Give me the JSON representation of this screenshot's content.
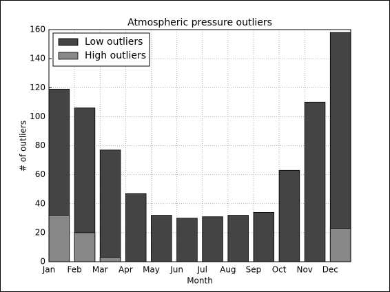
{
  "chart_data": {
    "type": "bar",
    "barmode": "overlay",
    "title": "Atmospheric pressure outliers",
    "xlabel": "Month",
    "ylabel": "# of outliers",
    "categories": [
      "Jan",
      "Feb",
      "Mar",
      "Apr",
      "May",
      "Jun",
      "Jul",
      "Aug",
      "Sep",
      "Oct",
      "Nov",
      "Dec"
    ],
    "series": [
      {
        "name": "Low outliers",
        "color": "#444444",
        "values": [
          119,
          106,
          77,
          47,
          32,
          30,
          31,
          32,
          34,
          63,
          110,
          158
        ]
      },
      {
        "name": "High outliers",
        "color": "#888888",
        "values": [
          32,
          20,
          3,
          0,
          0,
          0,
          0,
          0,
          0,
          0,
          0,
          23
        ]
      }
    ],
    "ylim": [
      0,
      160
    ],
    "yticks": [
      0,
      20,
      40,
      60,
      80,
      100,
      120,
      140,
      160
    ],
    "grid": true,
    "legend": "upper left"
  }
}
